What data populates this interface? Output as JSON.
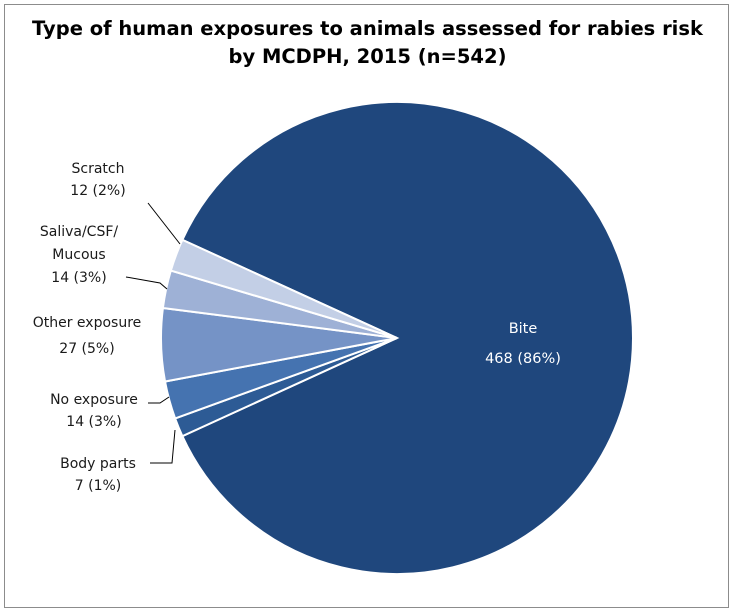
{
  "chart_data": {
    "type": "pie",
    "title_line1": "Type of human exposures to animals assessed for rabies risk",
    "title_line2": "by MCDPH, 2015 (n=542)",
    "slices": [
      {
        "name": "Bite",
        "value": 468,
        "pct_label": "468 (86%)",
        "color": "#1f477d"
      },
      {
        "name": "Body parts",
        "value": 7,
        "pct_label": "7 (1%)",
        "color": "#2d5b95"
      },
      {
        "name": "No exposure",
        "value": 14,
        "pct_label": "14 (3%)",
        "color": "#4573b0"
      },
      {
        "name": "Other exposure",
        "value": 27,
        "pct_label": "27 (5%)",
        "color": "#7593c6"
      },
      {
        "name": "Saliva/CSF/\nMucous",
        "value": 14,
        "pct_label": "14 (3%)",
        "color": "#9eb1d6"
      },
      {
        "name": "Scratch",
        "value": 12,
        "pct_label": "12 (2%)",
        "color": "#c3cfe6"
      }
    ]
  }
}
